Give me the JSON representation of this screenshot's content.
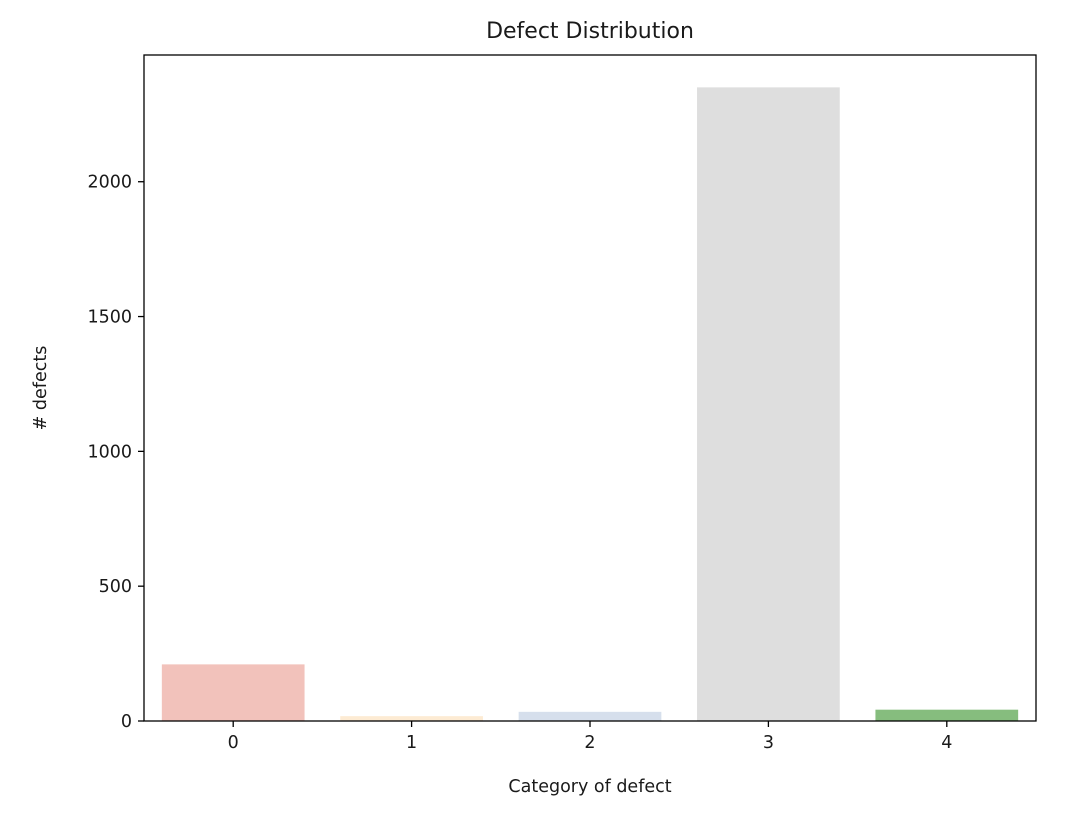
{
  "chart_data": {
    "type": "bar",
    "title": "Defect Distribution",
    "xlabel": "Category of defect",
    "ylabel": "# defects",
    "categories": [
      "0",
      "1",
      "2",
      "3",
      "4"
    ],
    "values": [
      210,
      18,
      34,
      2350,
      42
    ],
    "colors": [
      "#f2c2bb",
      "#fdebd3",
      "#d6dfec",
      "#dedede",
      "#86bd7e"
    ],
    "ylim": [
      0,
      2470
    ],
    "yticks": [
      0,
      500,
      1000,
      1500,
      2000
    ],
    "grid": false,
    "legend": false
  }
}
